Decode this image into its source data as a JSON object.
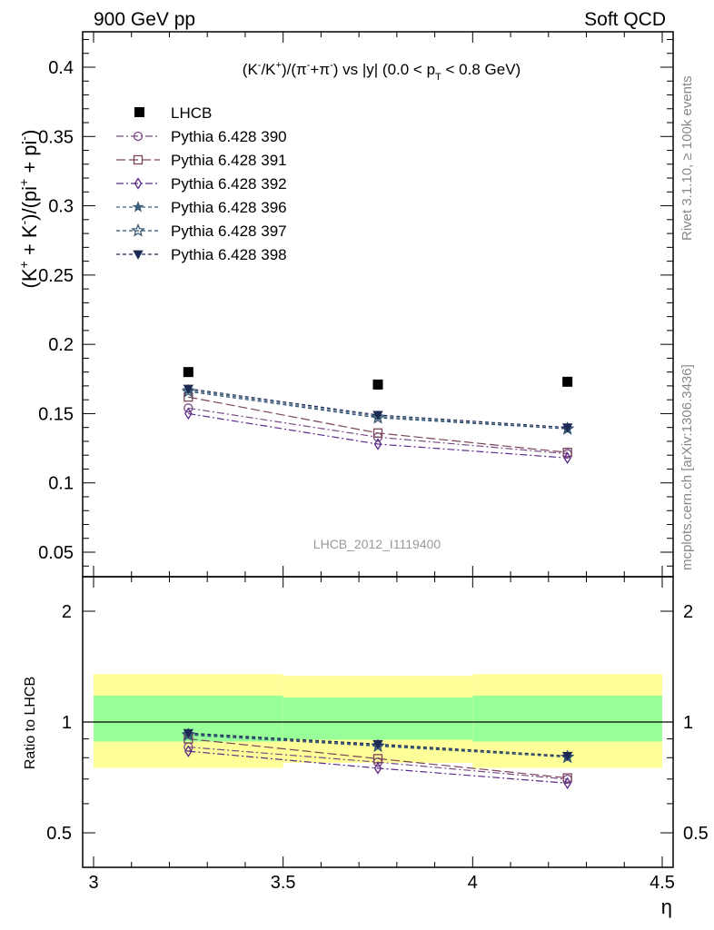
{
  "header": {
    "left": "900 GeV pp",
    "right": "Soft QCD"
  },
  "side_labels": {
    "rivet": "Rivet 3.1.10, ≥ 100k events",
    "mcplots": "mcplots.cern.ch [arXiv:1306.3436]"
  },
  "chart_data": {
    "type": "scatter",
    "title": "(K-/K+)/(π-+π-) vs |y| (0.0 < pT < 0.8 GeV)",
    "title_parts": {
      "a": "(K",
      "a_sup": "-",
      "b": "/K",
      "b_sup": "+",
      "c": ")/(π",
      "c_sup": "-",
      "d": "+π",
      "d_sup": "-",
      "e": ") vs |y| (0.0 < p",
      "e_sub": "T",
      "f": " < 0.8 GeV)"
    },
    "ylabel_parts": {
      "a": "(K",
      "a_sup": "+",
      "b": " + K",
      "b_sup": "-",
      "c": ")/(pi",
      "c_sup": "+",
      "d": " + pi",
      "d_sup": "-",
      "e": ")"
    },
    "xlabel": "η",
    "ratio_ylabel": "Ratio to LHCB",
    "watermark": "LHCB_2012_I1119400",
    "xlim": [
      3.0,
      4.5
    ],
    "ylim": [
      0.035,
      0.425
    ],
    "ratio_ylim": [
      0.35,
      2.3
    ],
    "x_ticks": [
      "3",
      "3.5",
      "4",
      "4.5"
    ],
    "y_ticks": [
      "0.05",
      "0.1",
      "0.15",
      "0.2",
      "0.25",
      "0.3",
      "0.35",
      "0.4"
    ],
    "ratio_y_ticks": [
      "0.5",
      "1",
      "2"
    ],
    "x": [
      3.25,
      3.75,
      4.25
    ],
    "reference": {
      "name": "LHCB",
      "values": [
        0.18,
        0.171,
        0.173
      ],
      "bins": [
        [
          3.0,
          3.5
        ],
        [
          3.5,
          4.0
        ],
        [
          4.0,
          4.5
        ]
      ],
      "ratio_band_inner": [
        [
          0.885,
          1.18
        ],
        [
          0.895,
          1.165
        ],
        [
          0.885,
          1.18
        ]
      ],
      "ratio_band_outer": [
        [
          0.75,
          1.35
        ],
        [
          0.775,
          1.335
        ],
        [
          0.75,
          1.35
        ]
      ]
    },
    "series": [
      {
        "name": "Pythia 6.428 390",
        "values": [
          0.154,
          0.133,
          0.121
        ],
        "ratio": [
          0.855,
          0.778,
          0.699
        ],
        "color": "#7a4b86",
        "marker": "circle",
        "dash": "8,3,2,3"
      },
      {
        "name": "Pythia 6.428 391",
        "values": [
          0.162,
          0.136,
          0.122
        ],
        "ratio": [
          0.9,
          0.795,
          0.705
        ],
        "color": "#7a4458",
        "marker": "square",
        "dash": "10,4"
      },
      {
        "name": "Pythia 6.428 392",
        "values": [
          0.15,
          0.128,
          0.118
        ],
        "ratio": [
          0.833,
          0.749,
          0.682
        ],
        "color": "#5a2a8a",
        "marker": "diamond",
        "dash": "8,3,2,3"
      },
      {
        "name": "Pythia 6.428 396",
        "values": [
          0.167,
          0.148,
          0.139
        ],
        "ratio": [
          0.928,
          0.865,
          0.803
        ],
        "color": "#3b5f7a",
        "marker": "star-filled",
        "dash": "4,3"
      },
      {
        "name": "Pythia 6.428 397",
        "values": [
          0.166,
          0.147,
          0.139
        ],
        "ratio": [
          0.922,
          0.86,
          0.803
        ],
        "color": "#2f4f70",
        "marker": "star-open",
        "dash": "4,3"
      },
      {
        "name": "Pythia 6.428 398",
        "values": [
          0.168,
          0.149,
          0.14
        ],
        "ratio": [
          0.933,
          0.871,
          0.809
        ],
        "color": "#1c2a55",
        "marker": "triangle-down",
        "dash": "4,3"
      }
    ],
    "legend_position": "top-left",
    "grid": false
  }
}
